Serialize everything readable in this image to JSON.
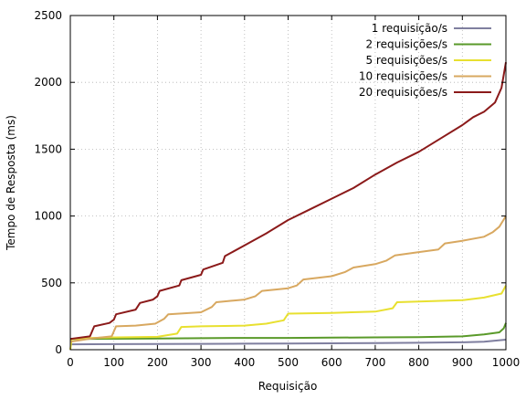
{
  "chart_data": {
    "type": "line",
    "xlabel": "Requisição",
    "ylabel": "Tempo de Resposta (ms)",
    "xlim": [
      0,
      1000
    ],
    "ylim": [
      0,
      2500
    ],
    "xticks": [
      0,
      100,
      200,
      300,
      400,
      500,
      600,
      700,
      800,
      900,
      1000
    ],
    "yticks": [
      0,
      500,
      1000,
      1500,
      2000,
      2500
    ],
    "grid": true,
    "legend_position": "top-right",
    "series": [
      {
        "name": "1 requisição/s",
        "color": "#7f7f9f",
        "points": [
          [
            0,
            40
          ],
          [
            100,
            42
          ],
          [
            200,
            43
          ],
          [
            300,
            44
          ],
          [
            400,
            45
          ],
          [
            500,
            46
          ],
          [
            600,
            48
          ],
          [
            700,
            50
          ],
          [
            800,
            52
          ],
          [
            900,
            55
          ],
          [
            950,
            60
          ],
          [
            1000,
            75
          ]
        ]
      },
      {
        "name": "2 requisições/s",
        "color": "#5a9a2a",
        "points": [
          [
            0,
            80
          ],
          [
            100,
            82
          ],
          [
            200,
            84
          ],
          [
            300,
            86
          ],
          [
            400,
            88
          ],
          [
            500,
            88
          ],
          [
            600,
            90
          ],
          [
            700,
            92
          ],
          [
            800,
            94
          ],
          [
            900,
            100
          ],
          [
            950,
            115
          ],
          [
            985,
            130
          ],
          [
            995,
            160
          ],
          [
            1000,
            200
          ]
        ]
      },
      {
        "name": "5 requisições/s",
        "color": "#e8e030",
        "points": [
          [
            0,
            0
          ],
          [
            3,
            80
          ],
          [
            50,
            88
          ],
          [
            100,
            92
          ],
          [
            200,
            96
          ],
          [
            245,
            120
          ],
          [
            255,
            170
          ],
          [
            300,
            175
          ],
          [
            400,
            180
          ],
          [
            450,
            195
          ],
          [
            490,
            220
          ],
          [
            500,
            270
          ],
          [
            600,
            275
          ],
          [
            700,
            285
          ],
          [
            740,
            310
          ],
          [
            750,
            355
          ],
          [
            800,
            360
          ],
          [
            900,
            370
          ],
          [
            950,
            390
          ],
          [
            990,
            420
          ],
          [
            1000,
            480
          ]
        ]
      },
      {
        "name": "10 requisições/s",
        "color": "#d8a860",
        "points": [
          [
            0,
            60
          ],
          [
            50,
            85
          ],
          [
            95,
            100
          ],
          [
            105,
            175
          ],
          [
            150,
            180
          ],
          [
            195,
            195
          ],
          [
            215,
            230
          ],
          [
            225,
            265
          ],
          [
            300,
            280
          ],
          [
            325,
            320
          ],
          [
            335,
            355
          ],
          [
            400,
            375
          ],
          [
            425,
            400
          ],
          [
            440,
            440
          ],
          [
            500,
            460
          ],
          [
            520,
            480
          ],
          [
            535,
            525
          ],
          [
            600,
            550
          ],
          [
            630,
            580
          ],
          [
            650,
            615
          ],
          [
            700,
            640
          ],
          [
            725,
            665
          ],
          [
            745,
            705
          ],
          [
            800,
            730
          ],
          [
            845,
            750
          ],
          [
            860,
            795
          ],
          [
            900,
            815
          ],
          [
            950,
            845
          ],
          [
            970,
            880
          ],
          [
            985,
            920
          ],
          [
            1000,
            1000
          ]
        ]
      },
      {
        "name": "20 requisições/s",
        "color": "#8b1a1a",
        "points": [
          [
            0,
            80
          ],
          [
            45,
            100
          ],
          [
            55,
            175
          ],
          [
            90,
            200
          ],
          [
            100,
            225
          ],
          [
            105,
            265
          ],
          [
            150,
            300
          ],
          [
            160,
            350
          ],
          [
            190,
            375
          ],
          [
            200,
            400
          ],
          [
            205,
            440
          ],
          [
            250,
            480
          ],
          [
            255,
            520
          ],
          [
            300,
            560
          ],
          [
            305,
            600
          ],
          [
            350,
            650
          ],
          [
            355,
            700
          ],
          [
            400,
            780
          ],
          [
            450,
            870
          ],
          [
            500,
            970
          ],
          [
            550,
            1050
          ],
          [
            600,
            1130
          ],
          [
            650,
            1210
          ],
          [
            700,
            1310
          ],
          [
            750,
            1400
          ],
          [
            800,
            1480
          ],
          [
            850,
            1580
          ],
          [
            900,
            1680
          ],
          [
            925,
            1740
          ],
          [
            950,
            1780
          ],
          [
            975,
            1850
          ],
          [
            990,
            1960
          ],
          [
            1000,
            2150
          ]
        ]
      }
    ]
  }
}
